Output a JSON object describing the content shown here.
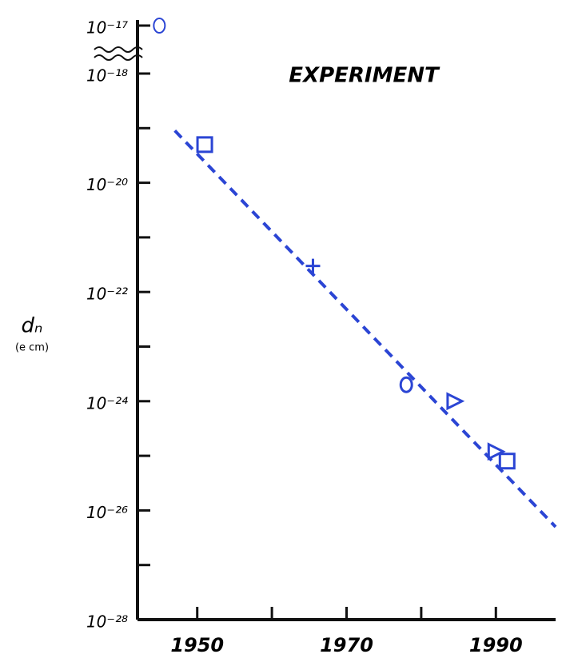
{
  "chart_data": {
    "type": "scatter",
    "annotation": "EXPERIMENT",
    "y_label": "dₙ",
    "y_unit": "(e cm)",
    "log_y": true,
    "color": "#2b45d4",
    "axis_color": "#111111",
    "xlim": [
      1942,
      1998
    ],
    "xticks": [
      1950,
      1970,
      1990
    ],
    "xticks_minor": [
      1960,
      1980
    ],
    "ylim": [
      1e-28,
      1e-18
    ],
    "yticks": [
      {
        "value": 1e-28,
        "label": "10⁻²⁸"
      },
      {
        "value": 1e-26,
        "label": "10⁻²⁶"
      },
      {
        "value": 1e-24,
        "label": "10⁻²⁴"
      },
      {
        "value": 1e-22,
        "label": "10⁻²²"
      },
      {
        "value": 1e-20,
        "label": "10⁻²⁰"
      },
      {
        "value": 1e-18,
        "label": "10⁻¹⁸"
      }
    ],
    "yticks_minor": [
      1e-27,
      1e-25,
      1e-23,
      1e-21,
      1e-19
    ],
    "break": {
      "tick": {
        "value": 1e-17,
        "label": "10⁻¹⁷"
      },
      "x": 1943,
      "value": 1e-17,
      "marker": "circle"
    },
    "points": {
      "x": [
        1951,
        1965.5,
        1978,
        1984.5,
        1990,
        1991.5
      ],
      "values": [
        5e-20,
        3e-22,
        2e-24,
        1e-24,
        1.2e-25,
        8e-26
      ],
      "markers": [
        "square",
        "plus",
        "circle",
        "triangle",
        "triangle",
        "square"
      ]
    },
    "trend": {
      "x": [
        1947,
        1998
      ],
      "values": [
        9e-20,
        5e-27
      ],
      "dash": true
    }
  }
}
